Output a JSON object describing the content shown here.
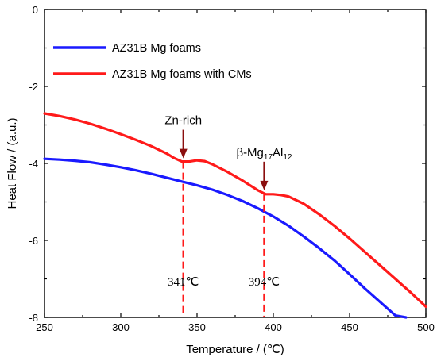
{
  "chart_data": {
    "type": "line",
    "title": "",
    "xlabel": "Temperature / (℃)",
    "ylabel": "Heat Flow / (a.u.)",
    "xlim": [
      250,
      500
    ],
    "ylim": [
      -8,
      0
    ],
    "x_ticks": [
      250,
      300,
      350,
      400,
      450,
      500
    ],
    "y_ticks": [
      0,
      -2,
      -4,
      -6,
      -8
    ],
    "grid": false,
    "legend_position": "top-left",
    "series": [
      {
        "name": "AZ31B Mg foams",
        "color": "#1a1aff",
        "x": [
          250,
          260,
          270,
          280,
          290,
          300,
          310,
          320,
          330,
          340,
          350,
          360,
          370,
          380,
          390,
          400,
          410,
          420,
          430,
          440,
          450,
          460,
          470,
          480,
          487
        ],
        "y": [
          -3.88,
          -3.9,
          -3.93,
          -3.97,
          -4.03,
          -4.1,
          -4.18,
          -4.27,
          -4.37,
          -4.47,
          -4.57,
          -4.68,
          -4.82,
          -4.98,
          -5.17,
          -5.38,
          -5.62,
          -5.9,
          -6.2,
          -6.52,
          -6.88,
          -7.25,
          -7.6,
          -7.95,
          -8.0
        ]
      },
      {
        "name": "AZ31B Mg foams with CMs",
        "color": "#ff1a1a",
        "x": [
          250,
          260,
          270,
          280,
          290,
          300,
          310,
          320,
          330,
          335,
          340,
          345,
          350,
          355,
          360,
          370,
          380,
          390,
          395,
          400,
          405,
          410,
          420,
          430,
          440,
          450,
          460,
          470,
          480,
          490,
          500
        ],
        "y": [
          -2.7,
          -2.77,
          -2.86,
          -2.97,
          -3.1,
          -3.24,
          -3.39,
          -3.55,
          -3.74,
          -3.86,
          -3.95,
          -3.95,
          -3.92,
          -3.94,
          -4.02,
          -4.22,
          -4.45,
          -4.7,
          -4.8,
          -4.8,
          -4.82,
          -4.86,
          -5.05,
          -5.32,
          -5.62,
          -5.95,
          -6.3,
          -6.65,
          -7.0,
          -7.35,
          -7.72
        ]
      }
    ],
    "annotations": [
      {
        "label": "Zn-rich",
        "x": 341,
        "y": -3.95,
        "temp_label": "341℃"
      },
      {
        "label_main": "β-Mg",
        "sub1": "17",
        "mid": "Al",
        "sub2": "12",
        "x": 394,
        "y": -4.78,
        "temp_label": "394℃"
      }
    ]
  }
}
